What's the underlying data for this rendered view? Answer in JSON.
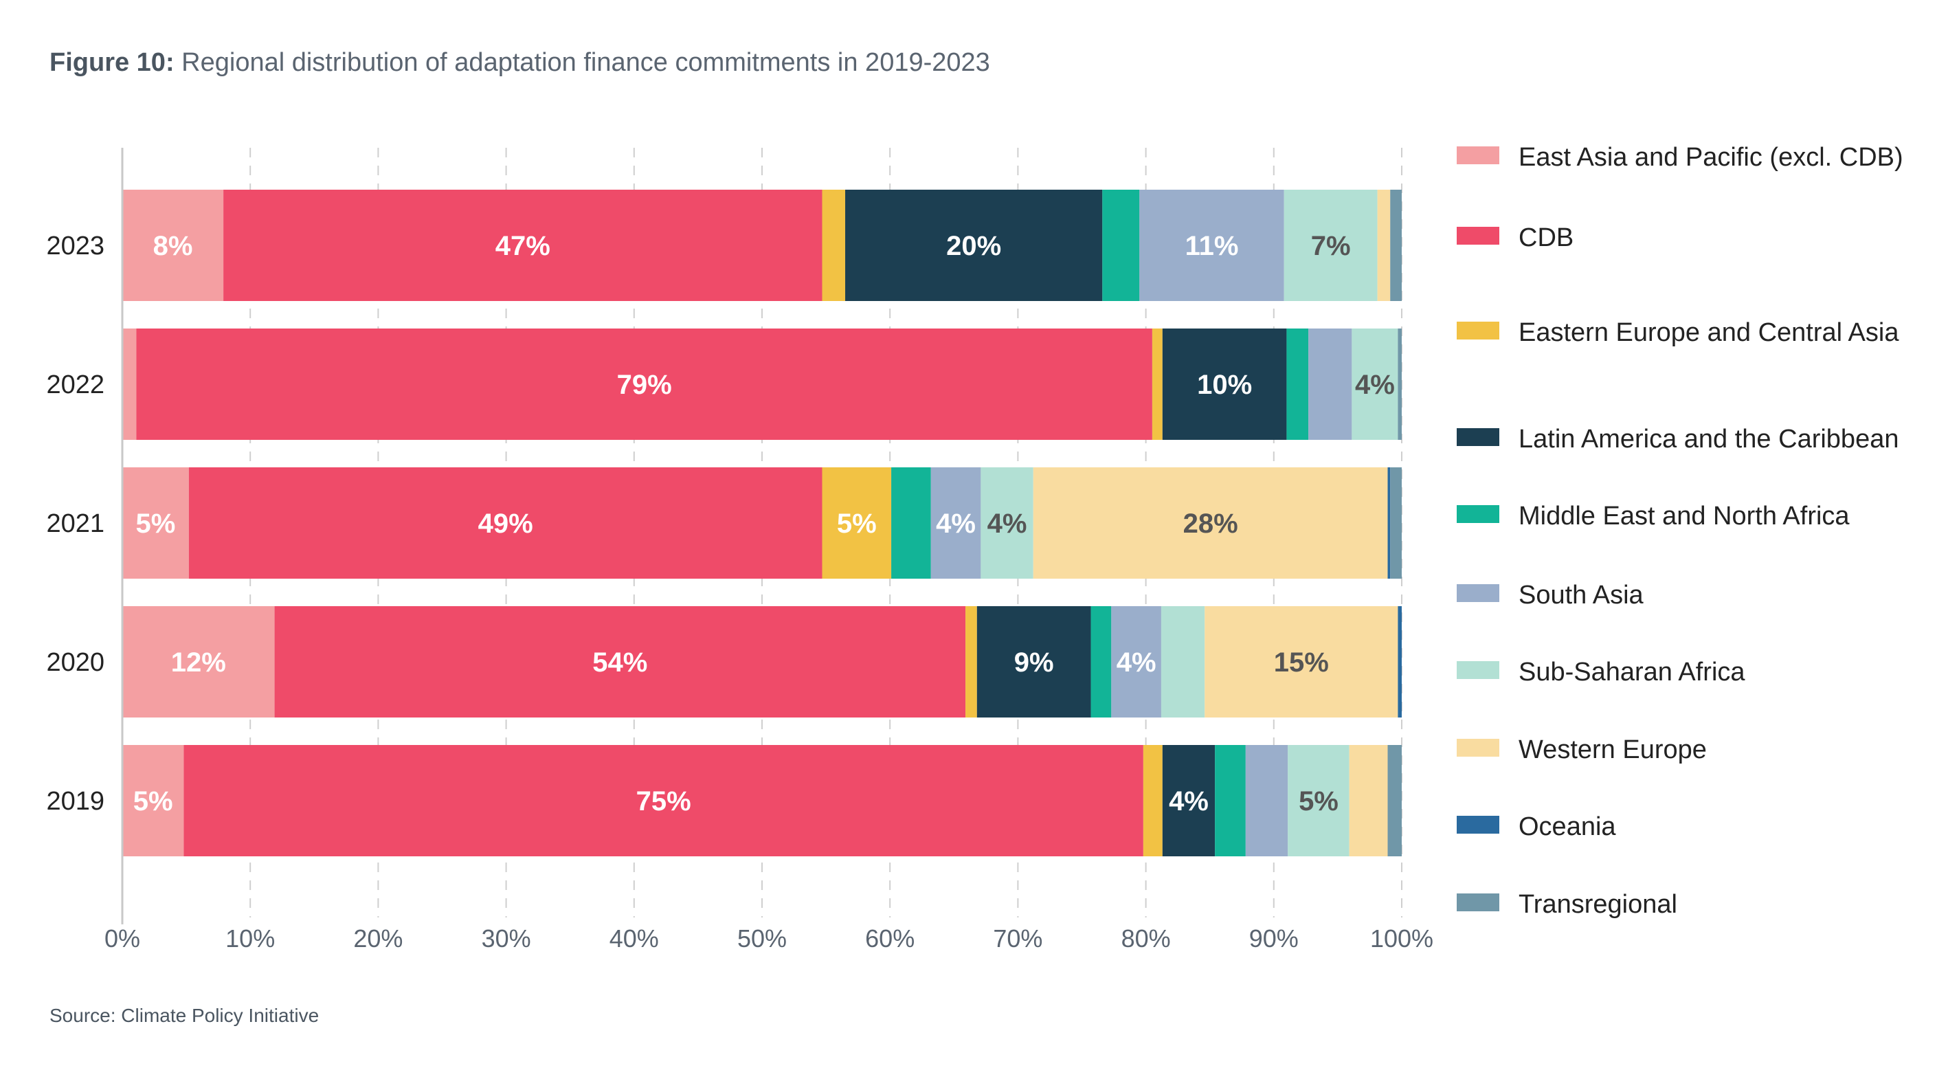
{
  "title": {
    "bold": "Figure 10:",
    "text": "Regional distribution of adaptation finance commitments in 2019-2023"
  },
  "source": "Source: Climate Policy Initiative",
  "chart_data": {
    "type": "bar",
    "orientation": "horizontal",
    "stacked": true,
    "categories": [
      "2023",
      "2022",
      "2021",
      "2020",
      "2019"
    ],
    "xlim": [
      0,
      100
    ],
    "x_ticks": [
      "0%",
      "10%",
      "20%",
      "30%",
      "40%",
      "50%",
      "60%",
      "70%",
      "80%",
      "90%",
      "100%"
    ],
    "grid": "vertical-dashed",
    "legend_position": "right",
    "series": [
      {
        "name": "East Asia and Pacific (excl. CDB)",
        "color": "#f49fa2",
        "label_color": "#ffffff",
        "values": [
          7.9,
          1.1,
          5.2,
          11.9,
          4.8
        ],
        "labels": [
          "8%",
          "",
          "5%",
          "12%",
          "5%"
        ]
      },
      {
        "name": "CDB",
        "color": "#ef4b69",
        "label_color": "#ffffff",
        "values": [
          46.8,
          79.4,
          49.5,
          54.0,
          75.0
        ],
        "labels": [
          "47%",
          "79%",
          "49%",
          "54%",
          "75%"
        ]
      },
      {
        "name": "Eastern Europe and Central Asia",
        "color": "#f2c244",
        "label_color": "#ffffff",
        "values": [
          1.8,
          0.8,
          5.4,
          0.9,
          1.5
        ],
        "labels": [
          "",
          "",
          "5%",
          "",
          ""
        ]
      },
      {
        "name": "Latin America and the Caribbean",
        "color": "#1c3f52",
        "label_color": "#ffffff",
        "values": [
          20.1,
          9.7,
          0.0,
          8.9,
          4.1
        ],
        "labels": [
          "20%",
          "10%",
          "",
          "9%",
          "4%"
        ]
      },
      {
        "name": "Middle East and North Africa",
        "color": "#12b497",
        "label_color": "#ffffff",
        "values": [
          2.9,
          1.7,
          3.1,
          1.6,
          2.4
        ],
        "labels": [
          "",
          "",
          "",
          "",
          ""
        ]
      },
      {
        "name": "South Asia",
        "color": "#9aaecb",
        "label_color": "#ffffff",
        "values": [
          11.3,
          3.4,
          3.9,
          3.9,
          3.3
        ],
        "labels": [
          "11%",
          "",
          "4%",
          "4%",
          ""
        ]
      },
      {
        "name": "Sub-Saharan Africa",
        "color": "#b2e0d4",
        "label_color": "#555555",
        "values": [
          7.3,
          3.6,
          4.1,
          3.4,
          4.8
        ],
        "labels": [
          "7%",
          "4%",
          "4%",
          "",
          "5%"
        ]
      },
      {
        "name": "Western Europe",
        "color": "#f9dca0",
        "label_color": "#555555",
        "values": [
          1.0,
          0.0,
          27.7,
          15.1,
          3.0
        ],
        "labels": [
          "",
          "",
          "28%",
          "15%",
          ""
        ]
      },
      {
        "name": "Oceania",
        "color": "#2a6a9f",
        "label_color": "#ffffff",
        "values": [
          0.0,
          0.0,
          0.2,
          0.3,
          0.0
        ],
        "labels": [
          "",
          "",
          "",
          "",
          ""
        ]
      },
      {
        "name": "Transregional",
        "color": "#7097a8",
        "label_color": "#ffffff",
        "values": [
          0.9,
          0.3,
          0.9,
          0.0,
          1.1
        ],
        "labels": [
          "",
          "",
          "",
          "",
          ""
        ]
      }
    ]
  }
}
